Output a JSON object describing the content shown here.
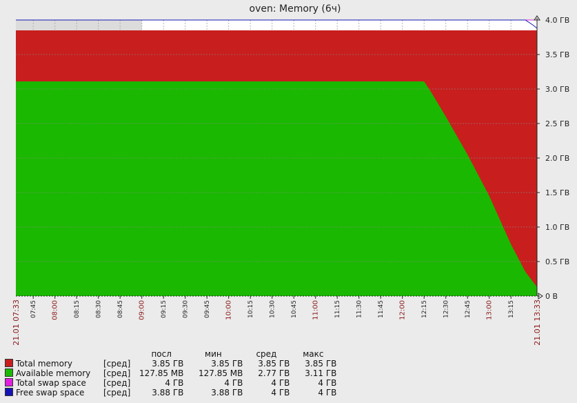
{
  "chart_data": {
    "type": "area",
    "title": "oven: Memory (6ч)",
    "y_tick_labels": [
      "0 B",
      "0.5 ГВ",
      "1.0 ГВ",
      "1.5 ГВ",
      "2.0 ГВ",
      "2.5 ГВ",
      "3.0 ГВ",
      "3.5 ГВ",
      "4.0 ГВ"
    ],
    "ylim": [
      0,
      4.0
    ],
    "y_unit": "GB",
    "x_start": "07:33",
    "x_end": "13:33",
    "x_tick_labels": [
      {
        "t": "07:45",
        "major": false
      },
      {
        "t": "08:00",
        "major": true
      },
      {
        "t": "08:15",
        "major": false
      },
      {
        "t": "08:30",
        "major": false
      },
      {
        "t": "08:45",
        "major": false
      },
      {
        "t": "09:00",
        "major": true
      },
      {
        "t": "09:15",
        "major": false
      },
      {
        "t": "09:30",
        "major": false
      },
      {
        "t": "09:45",
        "major": false
      },
      {
        "t": "10:00",
        "major": true
      },
      {
        "t": "10:15",
        "major": false
      },
      {
        "t": "10:30",
        "major": false
      },
      {
        "t": "10:45",
        "major": false
      },
      {
        "t": "11:00",
        "major": true
      },
      {
        "t": "11:15",
        "major": false
      },
      {
        "t": "11:30",
        "major": false
      },
      {
        "t": "11:45",
        "major": false
      },
      {
        "t": "12:00",
        "major": true
      },
      {
        "t": "12:15",
        "major": false
      },
      {
        "t": "12:30",
        "major": false
      },
      {
        "t": "12:45",
        "major": false
      },
      {
        "t": "13:00",
        "major": true
      },
      {
        "t": "13:15",
        "major": false
      }
    ],
    "x_edge_labels": [
      "21.01 07:33",
      "21.01 13:33"
    ],
    "no_data_until": "09:00",
    "series": [
      {
        "name": "Total memory",
        "color": "#c81e1e",
        "kind": "area",
        "points": [
          [
            "07:33",
            3.85
          ],
          [
            "13:33",
            3.85
          ]
        ]
      },
      {
        "name": "Available memory",
        "color": "#1ab800",
        "kind": "area",
        "points": [
          [
            "07:33",
            3.11
          ],
          [
            "12:15",
            3.11
          ],
          [
            "12:20",
            2.95
          ],
          [
            "12:30",
            2.6
          ],
          [
            "12:45",
            2.05
          ],
          [
            "13:00",
            1.45
          ],
          [
            "13:15",
            0.75
          ],
          [
            "13:25",
            0.35
          ],
          [
            "13:33",
            0.13
          ]
        ]
      },
      {
        "name": "Total swap space",
        "color": "#e020e0",
        "kind": "line",
        "points": [
          [
            "07:33",
            4.0
          ],
          [
            "13:33",
            4.0
          ]
        ]
      },
      {
        "name": "Free swap space",
        "color": "#1414b4",
        "kind": "line",
        "points": [
          [
            "07:33",
            4.0
          ],
          [
            "13:25",
            4.0
          ],
          [
            "13:30",
            3.93
          ],
          [
            "13:33",
            3.88
          ]
        ]
      }
    ]
  },
  "legend": {
    "headers": {
      "last": "посл",
      "min": "мин",
      "avg": "сред",
      "max": "макс"
    },
    "rows": [
      {
        "name": "Total memory",
        "fn": "[сред]",
        "last": "3.85 ГВ",
        "min": "3.85 ГВ",
        "avg": "3.85 ГВ",
        "max": "3.85 ГВ",
        "color": "#c81e1e"
      },
      {
        "name": "Available memory",
        "fn": "[сред]",
        "last": "127.85 MB",
        "min": "127.85 MB",
        "avg": "2.77 ГВ",
        "max": "3.11 ГВ",
        "color": "#1ab800"
      },
      {
        "name": "Total swap space",
        "fn": "[сред]",
        "last": "4 ГВ",
        "min": "4 ГВ",
        "avg": "4 ГВ",
        "max": "4 ГВ",
        "color": "#e020e0"
      },
      {
        "name": "Free swap space",
        "fn": "[сред]",
        "last": "3.88 ГВ",
        "min": "3.88 ГВ",
        "avg": "4 ГВ",
        "max": "4 ГВ",
        "color": "#1414b4"
      }
    ]
  }
}
